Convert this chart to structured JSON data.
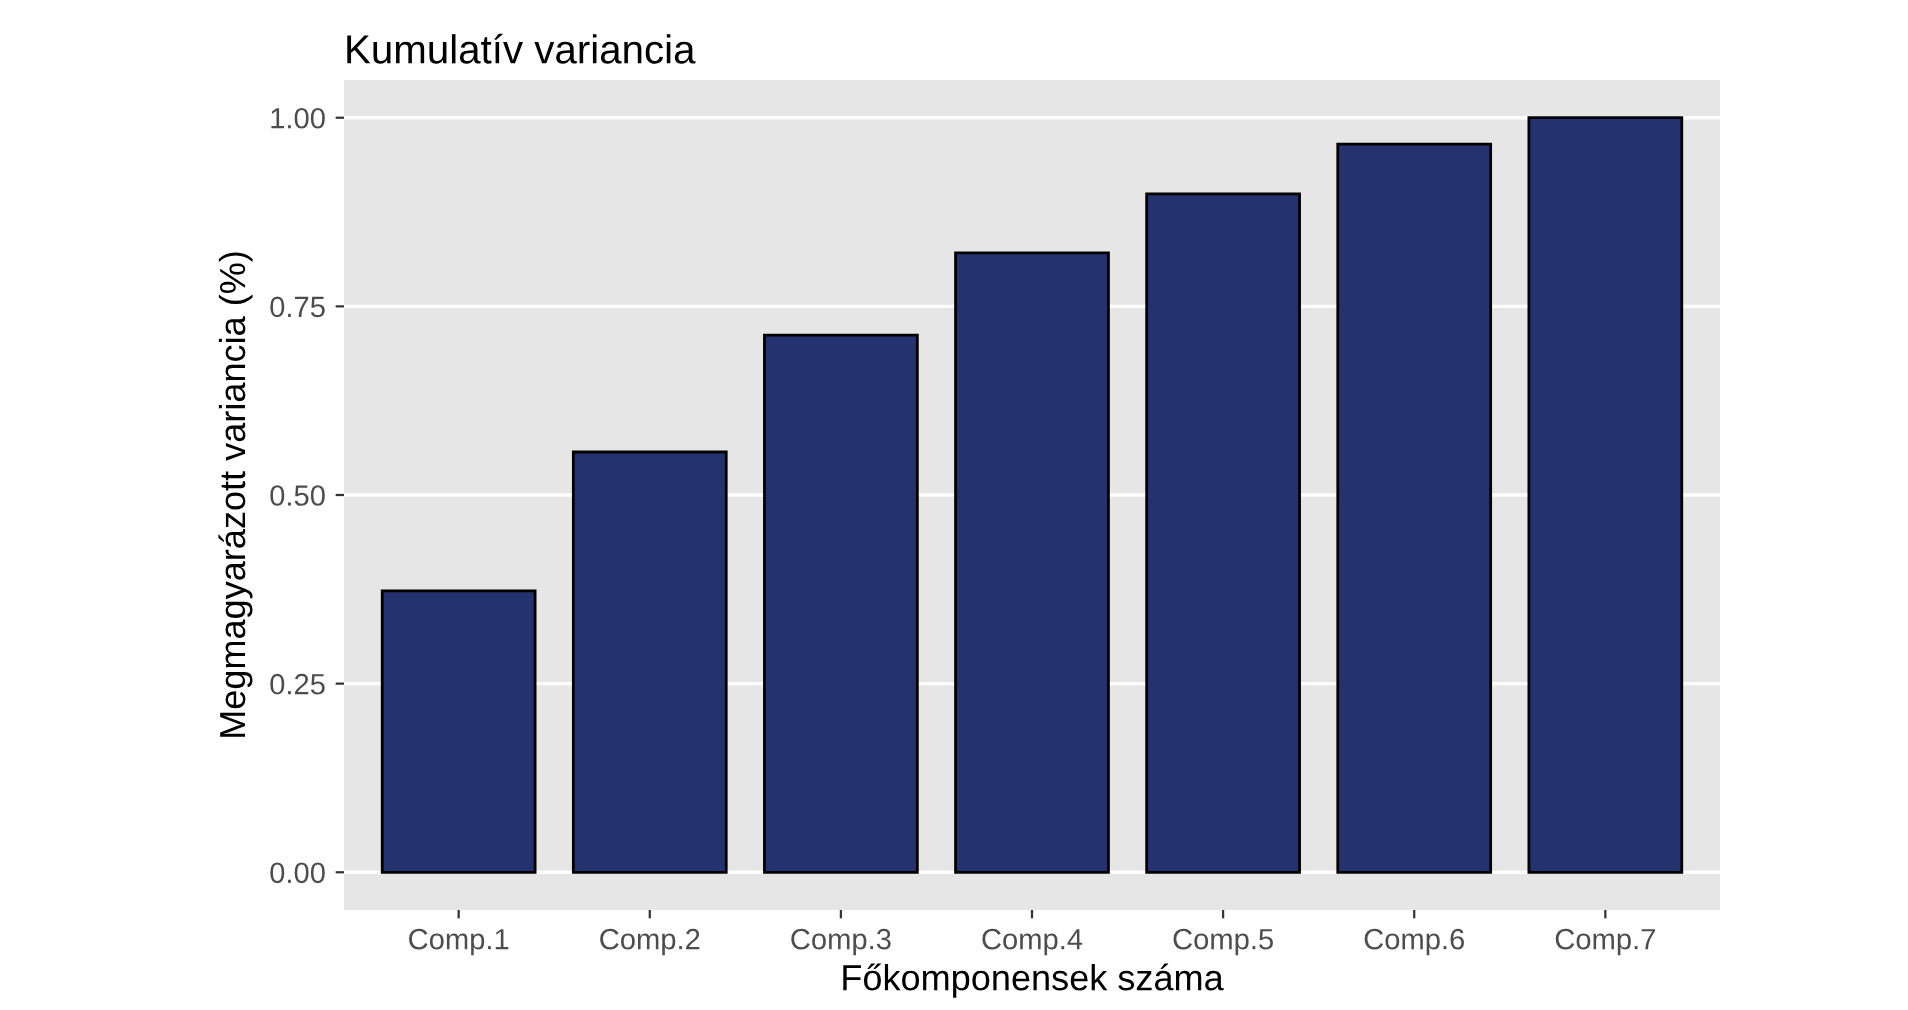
{
  "chart_data": {
    "type": "bar",
    "title": "Kumulatív variancia",
    "xlabel": "Főkomponensek száma",
    "ylabel": "Megmagyarázott variancia (%)",
    "categories": [
      "Comp.1",
      "Comp.2",
      "Comp.3",
      "Comp.4",
      "Comp.5",
      "Comp.6",
      "Comp.7"
    ],
    "values": [
      0.373,
      0.557,
      0.712,
      0.821,
      0.899,
      0.965,
      1.0
    ],
    "color": "#24336f",
    "ylim": [
      -0.05,
      1.05
    ],
    "yticks": [
      {
        "value": 0,
        "label": "0.00"
      },
      {
        "value": 0.25,
        "label": "0.25"
      },
      {
        "value": 0.5,
        "label": "0.50"
      },
      {
        "value": 0.75,
        "label": "0.75"
      },
      {
        "value": 1,
        "label": "1.00"
      }
    ],
    "grid": "y"
  }
}
